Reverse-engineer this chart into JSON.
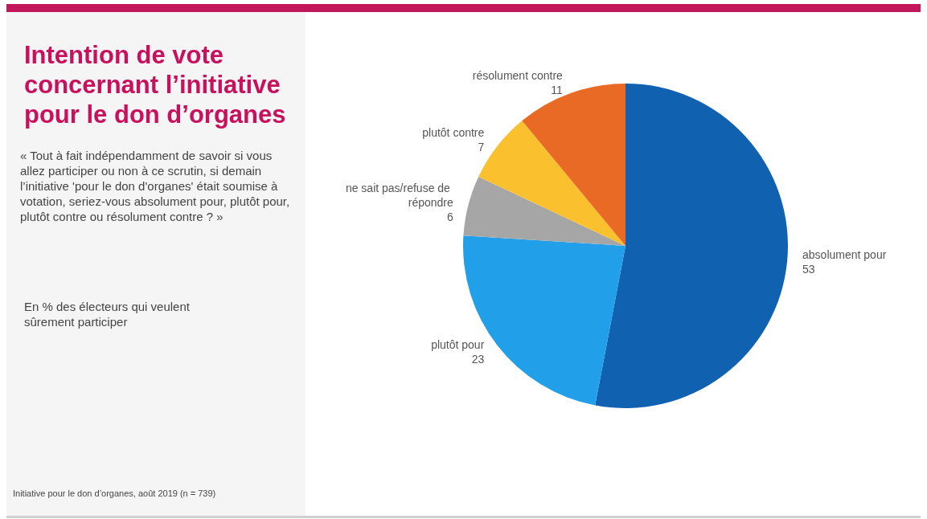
{
  "chart_data": {
    "type": "pie",
    "title": "Intention de vote concernant l’initiative pour le don d’organes",
    "subtitle": "« Tout à fait indépendamment de savoir si vous allez participer ou non à ce scrutin, si demain l’initiative 'pour le don d'organes' était soumise à votation, seriez-vous absolument pour, plutôt pour, plutôt contre ou résolument contre  ? »",
    "annotations": [
      "En % des électeurs qui veulent sûrement participer",
      "Initiative pour le don d’organes, août 2019 (n = 739)"
    ],
    "categories": [
      "absolument pour",
      "plutôt pour",
      "ne sait pas/refuse de répondre",
      "plutôt contre",
      "résolument contre"
    ],
    "values": [
      53,
      23,
      6,
      7,
      11
    ],
    "colors": [
      "#1062b0",
      "#21a0e9",
      "#a6a6a6",
      "#fbc02d",
      "#e86a25"
    ],
    "data_labels": true,
    "legend": false
  }
}
